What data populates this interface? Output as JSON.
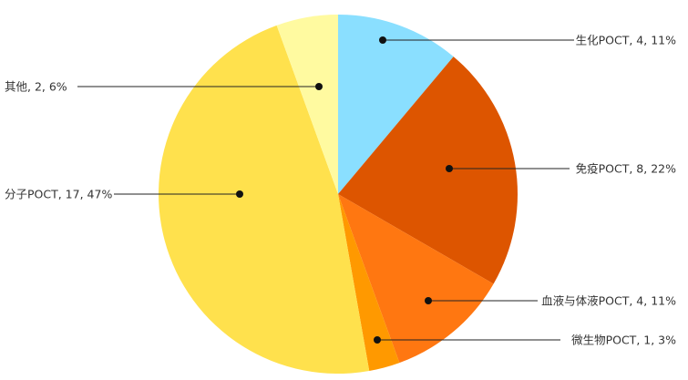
{
  "chart_data": {
    "type": "pie",
    "title": "",
    "start": "top",
    "direction": "clockwise",
    "slices": [
      {
        "name": "生化POCT",
        "value": 4,
        "percent": "11%",
        "label": "生化POCT, 4, 11%",
        "color": "#8ADFFF"
      },
      {
        "name": "免疫POCT",
        "value": 8,
        "percent": "22%",
        "label": "免疫POCT, 8, 22%",
        "color": "#DD5500"
      },
      {
        "name": "血液与体液POCT",
        "value": 4,
        "percent": "11%",
        "label": "血液与体液POCT, 4, 11%",
        "color": "#FF7711"
      },
      {
        "name": "微生物POCT",
        "value": 1,
        "percent": "3%",
        "label": "微生物POCT, 1, 3%",
        "color": "#FF9900"
      },
      {
        "name": "分子POCT",
        "value": 17,
        "percent": "47%",
        "label": "分子POCT, 17, 47%",
        "color": "#FFE14D"
      },
      {
        "name": "其他",
        "value": 2,
        "percent": "6%",
        "label": "其他, 2, 6%",
        "color": "#FFFAA0"
      }
    ]
  }
}
